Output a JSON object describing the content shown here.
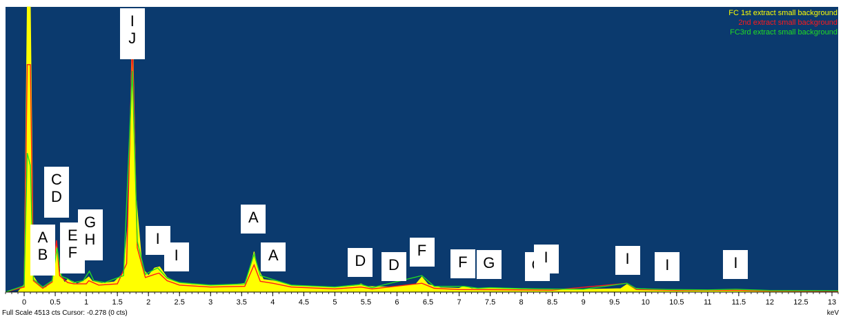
{
  "legend": [
    {
      "name": "FC 1st extract small background",
      "color": "#ffff00"
    },
    {
      "name": "2nd extract small background",
      "color": "#ff1a1a"
    },
    {
      "name": "FC3rd extract small background",
      "color": "#22dd22"
    }
  ],
  "status": {
    "full_scale": "Full Scale 4513 cts",
    "cursor": "Cursor: -0.278  (0 cts)",
    "unit": "keV"
  },
  "colors": {
    "background": "#0b3a6e",
    "axis": "#000000",
    "label_bg": "#ffffff"
  },
  "peak_labels": [
    {
      "id": "ab",
      "lines": [
        "A",
        "B"
      ],
      "energy": 0.3
    },
    {
      "id": "cd",
      "lines": [
        "C",
        "D"
      ],
      "energy": 0.52
    },
    {
      "id": "ef",
      "lines": [
        "E",
        "F"
      ],
      "energy": 0.78
    },
    {
      "id": "gh",
      "lines": [
        "G",
        "H"
      ],
      "energy": 1.06
    },
    {
      "id": "ij",
      "lines": [
        "I",
        "J"
      ],
      "energy": 1.74
    },
    {
      "id": "i1",
      "lines": [
        "I"
      ],
      "energy": 2.15
    },
    {
      "id": "i2",
      "lines": [
        "I"
      ],
      "energy": 2.45
    },
    {
      "id": "a1",
      "lines": [
        "A"
      ],
      "energy": 3.69
    },
    {
      "id": "a2",
      "lines": [
        "A"
      ],
      "energy": 4.01
    },
    {
      "id": "d1",
      "lines": [
        "D"
      ],
      "energy": 5.41
    },
    {
      "id": "d2",
      "lines": [
        "D"
      ],
      "energy": 5.95
    },
    {
      "id": "f1",
      "lines": [
        "F"
      ],
      "energy": 6.4
    },
    {
      "id": "f2",
      "lines": [
        "F"
      ],
      "energy": 7.06
    },
    {
      "id": "g1",
      "lines": [
        "G"
      ],
      "energy": 7.48
    },
    {
      "id": "g2",
      "lines": [
        "G"
      ],
      "energy": 8.26
    },
    {
      "id": "i3",
      "lines": [
        "I"
      ],
      "energy": 8.4
    },
    {
      "id": "i4",
      "lines": [
        "I"
      ],
      "energy": 9.71
    },
    {
      "id": "i5",
      "lines": [
        "I"
      ],
      "energy": 10.35
    },
    {
      "id": "i6",
      "lines": [
        "I"
      ],
      "energy": 11.45
    }
  ],
  "chart_data": {
    "type": "area",
    "xlabel": "keV",
    "xlim": [
      -0.3,
      13.1
    ],
    "ylim": [
      0,
      4513
    ],
    "x_ticks": [
      {
        "value": 0,
        "label": "0"
      },
      {
        "value": 0.5,
        "label": "0.5"
      },
      {
        "value": 1,
        "label": "1"
      },
      {
        "value": 1.5,
        "label": "1.5"
      },
      {
        "value": 2,
        "label": "2"
      },
      {
        "value": 2.5,
        "label": "2.5"
      },
      {
        "value": 3,
        "label": "3"
      },
      {
        "value": 3.5,
        "label": "3.5"
      },
      {
        "value": 4,
        "label": "4"
      },
      {
        "value": 4.5,
        "label": "4.5"
      },
      {
        "value": 5,
        "label": "5"
      },
      {
        "value": 5.5,
        "label": "5.5"
      },
      {
        "value": 6,
        "label": "6"
      },
      {
        "value": 6.5,
        "label": "6.5"
      },
      {
        "value": 7,
        "label": "7"
      },
      {
        "value": 7.5,
        "label": "7.5"
      },
      {
        "value": 8,
        "label": "8"
      },
      {
        "value": 8.5,
        "label": "8.5"
      },
      {
        "value": 9,
        "label": "9"
      },
      {
        "value": 9.5,
        "label": "9.5"
      },
      {
        "value": 10,
        "label": "10"
      },
      {
        "value": 10.5,
        "label": "10.5"
      },
      {
        "value": 11,
        "label": "11"
      },
      {
        "value": 11.5,
        "label": "11.5"
      },
      {
        "value": 12,
        "label": "12"
      },
      {
        "value": 12.5,
        "label": "12.5"
      },
      {
        "value": 13,
        "label": "13"
      }
    ],
    "series": [
      {
        "name": "FC 1st extract small background",
        "color": "#ffff00",
        "points": [
          [
            -0.3,
            0
          ],
          [
            -0.1,
            0
          ],
          [
            0.0,
            120
          ],
          [
            0.05,
            6000
          ],
          [
            0.1,
            6000
          ],
          [
            0.15,
            250
          ],
          [
            0.25,
            90
          ],
          [
            0.35,
            70
          ],
          [
            0.45,
            180
          ],
          [
            0.52,
            760
          ],
          [
            0.57,
            300
          ],
          [
            0.65,
            150
          ],
          [
            0.7,
            200
          ],
          [
            0.78,
            170
          ],
          [
            0.85,
            130
          ],
          [
            0.95,
            170
          ],
          [
            1.04,
            240
          ],
          [
            1.1,
            170
          ],
          [
            1.25,
            140
          ],
          [
            1.45,
            160
          ],
          [
            1.6,
            300
          ],
          [
            1.68,
            1200
          ],
          [
            1.74,
            4300
          ],
          [
            1.8,
            1500
          ],
          [
            1.9,
            380
          ],
          [
            2.0,
            260
          ],
          [
            2.1,
            380
          ],
          [
            2.18,
            400
          ],
          [
            2.3,
            230
          ],
          [
            2.45,
            160
          ],
          [
            2.7,
            120
          ],
          [
            3.0,
            110
          ],
          [
            3.3,
            110
          ],
          [
            3.55,
            140
          ],
          [
            3.65,
            420
          ],
          [
            3.7,
            640
          ],
          [
            3.75,
            400
          ],
          [
            3.85,
            200
          ],
          [
            4.0,
            180
          ],
          [
            4.1,
            160
          ],
          [
            4.3,
            100
          ],
          [
            5.0,
            70
          ],
          [
            5.35,
            100
          ],
          [
            5.42,
            130
          ],
          [
            5.5,
            90
          ],
          [
            5.9,
            80
          ],
          [
            6.3,
            120
          ],
          [
            6.4,
            240
          ],
          [
            6.5,
            120
          ],
          [
            6.7,
            70
          ],
          [
            7.0,
            60
          ],
          [
            7.08,
            90
          ],
          [
            7.2,
            55
          ],
          [
            7.48,
            60
          ],
          [
            8.0,
            45
          ],
          [
            8.3,
            40
          ],
          [
            9.0,
            40
          ],
          [
            9.6,
            55
          ],
          [
            9.7,
            120
          ],
          [
            9.8,
            60
          ],
          [
            10.3,
            35
          ],
          [
            11.0,
            30
          ],
          [
            11.45,
            40
          ],
          [
            11.6,
            25
          ],
          [
            12.0,
            20
          ],
          [
            13.1,
            15
          ]
        ]
      },
      {
        "name": "2nd extract small background",
        "color": "#ff1a1a",
        "points": [
          [
            -0.3,
            0
          ],
          [
            0.0,
            80
          ],
          [
            0.05,
            3600
          ],
          [
            0.1,
            3600
          ],
          [
            0.15,
            180
          ],
          [
            0.3,
            60
          ],
          [
            0.45,
            160
          ],
          [
            0.52,
            820
          ],
          [
            0.57,
            260
          ],
          [
            0.7,
            150
          ],
          [
            0.8,
            130
          ],
          [
            1.0,
            130
          ],
          [
            1.04,
            180
          ],
          [
            1.2,
            110
          ],
          [
            1.5,
            130
          ],
          [
            1.65,
            450
          ],
          [
            1.74,
            3950
          ],
          [
            1.82,
            700
          ],
          [
            1.95,
            230
          ],
          [
            2.1,
            280
          ],
          [
            2.17,
            300
          ],
          [
            2.3,
            180
          ],
          [
            2.5,
            110
          ],
          [
            3.0,
            80
          ],
          [
            3.55,
            90
          ],
          [
            3.7,
            430
          ],
          [
            3.8,
            170
          ],
          [
            4.0,
            140
          ],
          [
            4.3,
            80
          ],
          [
            5.0,
            50
          ],
          [
            5.42,
            80
          ],
          [
            5.6,
            50
          ],
          [
            6.4,
            140
          ],
          [
            6.6,
            60
          ],
          [
            7.0,
            40
          ],
          [
            7.5,
            38
          ],
          [
            8.5,
            30
          ],
          [
            9.7,
            140
          ],
          [
            9.85,
            40
          ],
          [
            10.5,
            28
          ],
          [
            11.45,
            30
          ],
          [
            12.0,
            18
          ],
          [
            13.1,
            12
          ]
        ]
      },
      {
        "name": "FC3rd extract small background",
        "color": "#22dd22",
        "points": [
          [
            -0.3,
            0
          ],
          [
            0.0,
            100
          ],
          [
            0.05,
            2200
          ],
          [
            0.1,
            2000
          ],
          [
            0.15,
            200
          ],
          [
            0.3,
            80
          ],
          [
            0.45,
            180
          ],
          [
            0.53,
            700
          ],
          [
            0.6,
            250
          ],
          [
            0.7,
            210
          ],
          [
            0.8,
            150
          ],
          [
            0.95,
            180
          ],
          [
            1.05,
            330
          ],
          [
            1.12,
            180
          ],
          [
            1.3,
            150
          ],
          [
            1.6,
            260
          ],
          [
            1.74,
            3500
          ],
          [
            1.82,
            800
          ],
          [
            1.95,
            280
          ],
          [
            2.1,
            360
          ],
          [
            2.15,
            380
          ],
          [
            2.3,
            220
          ],
          [
            2.5,
            150
          ],
          [
            3.0,
            110
          ],
          [
            3.55,
            130
          ],
          [
            3.7,
            600
          ],
          [
            3.8,
            260
          ],
          [
            4.0,
            200
          ],
          [
            4.3,
            110
          ],
          [
            5.0,
            80
          ],
          [
            5.42,
            120
          ],
          [
            5.6,
            70
          ],
          [
            6.4,
            260
          ],
          [
            6.6,
            90
          ],
          [
            7.08,
            90
          ],
          [
            7.3,
            60
          ],
          [
            7.5,
            70
          ],
          [
            8.0,
            55
          ],
          [
            8.3,
            50
          ],
          [
            9.0,
            45
          ],
          [
            9.7,
            140
          ],
          [
            9.85,
            55
          ],
          [
            10.35,
            40
          ],
          [
            11.0,
            35
          ],
          [
            11.45,
            45
          ],
          [
            12.0,
            25
          ],
          [
            13.1,
            20
          ]
        ]
      }
    ]
  }
}
